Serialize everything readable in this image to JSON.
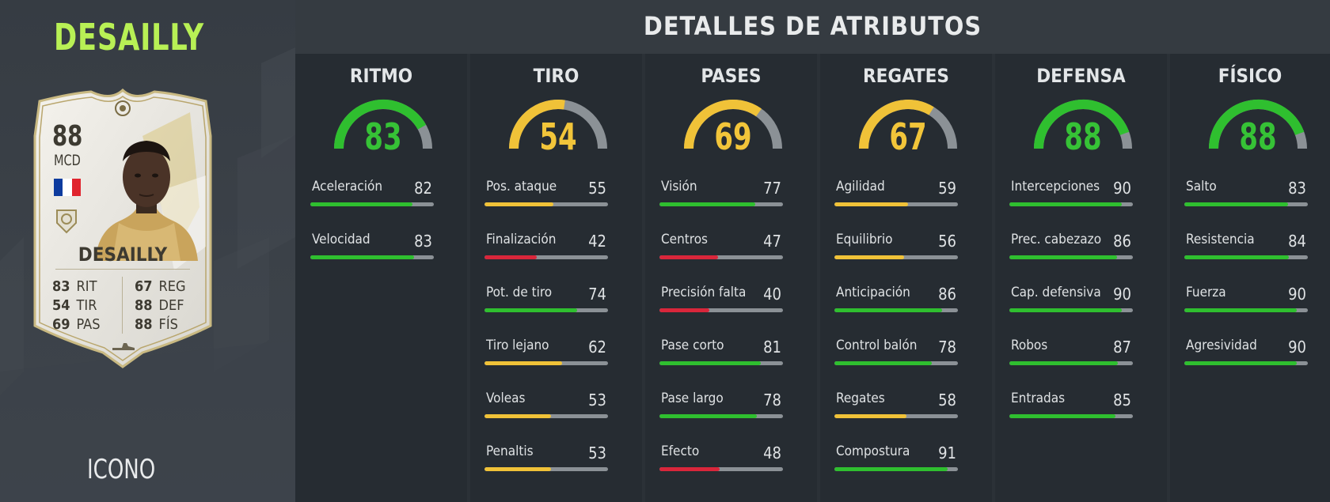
{
  "player": {
    "name": "DESAILLY",
    "version": "ICONO",
    "card": {
      "rating": "88",
      "position": "MCD",
      "name": "DESAILLY",
      "stats_left": [
        {
          "value": "83",
          "label": "RIT"
        },
        {
          "value": "54",
          "label": "TIR"
        },
        {
          "value": "69",
          "label": "PAS"
        }
      ],
      "stats_right": [
        {
          "value": "67",
          "label": "REG"
        },
        {
          "value": "88",
          "label": "DEF"
        },
        {
          "value": "88",
          "label": "FÍS"
        }
      ],
      "flag_colors": [
        "#0d3b9e",
        "#ffffff",
        "#e0242e"
      ]
    }
  },
  "header": {
    "title": "DETALLES DE ATRIBUTOS"
  },
  "colors": {
    "green": "#2fbf2f",
    "yellow": "#f0c238",
    "red": "#d9263b",
    "track": "#8b9196",
    "gauge_green_text": "#36c236",
    "gauge_yellow_text": "#f2c53a"
  },
  "categories": [
    {
      "title": "RITMO",
      "value": "83",
      "color": "green",
      "attributes": [
        {
          "name": "Aceleración",
          "value": "82",
          "color": "green"
        },
        {
          "name": "Velocidad",
          "value": "83",
          "color": "green"
        }
      ]
    },
    {
      "title": "TIRO",
      "value": "54",
      "color": "yellow",
      "attributes": [
        {
          "name": "Pos. ataque",
          "value": "55",
          "color": "yellow"
        },
        {
          "name": "Finalización",
          "value": "42",
          "color": "red"
        },
        {
          "name": "Pot. de tiro",
          "value": "74",
          "color": "green"
        },
        {
          "name": "Tiro lejano",
          "value": "62",
          "color": "yellow"
        },
        {
          "name": "Voleas",
          "value": "53",
          "color": "yellow"
        },
        {
          "name": "Penaltis",
          "value": "53",
          "color": "yellow"
        }
      ]
    },
    {
      "title": "PASES",
      "value": "69",
      "color": "yellow",
      "attributes": [
        {
          "name": "Visión",
          "value": "77",
          "color": "green"
        },
        {
          "name": "Centros",
          "value": "47",
          "color": "red"
        },
        {
          "name": "Precisión falta",
          "value": "40",
          "color": "red"
        },
        {
          "name": "Pase corto",
          "value": "81",
          "color": "green"
        },
        {
          "name": "Pase largo",
          "value": "78",
          "color": "green"
        },
        {
          "name": "Efecto",
          "value": "48",
          "color": "red"
        }
      ]
    },
    {
      "title": "REGATES",
      "value": "67",
      "color": "yellow",
      "attributes": [
        {
          "name": "Agilidad",
          "value": "59",
          "color": "yellow"
        },
        {
          "name": "Equilibrio",
          "value": "56",
          "color": "yellow"
        },
        {
          "name": "Anticipación",
          "value": "86",
          "color": "green"
        },
        {
          "name": "Control balón",
          "value": "78",
          "color": "green"
        },
        {
          "name": "Regates",
          "value": "58",
          "color": "yellow"
        },
        {
          "name": "Compostura",
          "value": "91",
          "color": "green"
        }
      ]
    },
    {
      "title": "DEFENSA",
      "value": "88",
      "color": "green",
      "attributes": [
        {
          "name": "Intercepciones",
          "value": "90",
          "color": "green"
        },
        {
          "name": "Prec. cabezazo",
          "value": "86",
          "color": "green"
        },
        {
          "name": "Cap. defensiva",
          "value": "90",
          "color": "green"
        },
        {
          "name": "Robos",
          "value": "87",
          "color": "green"
        },
        {
          "name": "Entradas",
          "value": "85",
          "color": "green"
        }
      ]
    },
    {
      "title": "FÍSICO",
      "value": "88",
      "color": "green",
      "attributes": [
        {
          "name": "Salto",
          "value": "83",
          "color": "green"
        },
        {
          "name": "Resistencia",
          "value": "84",
          "color": "green"
        },
        {
          "name": "Fuerza",
          "value": "90",
          "color": "green"
        },
        {
          "name": "Agresividad",
          "value": "90",
          "color": "green"
        }
      ]
    }
  ]
}
